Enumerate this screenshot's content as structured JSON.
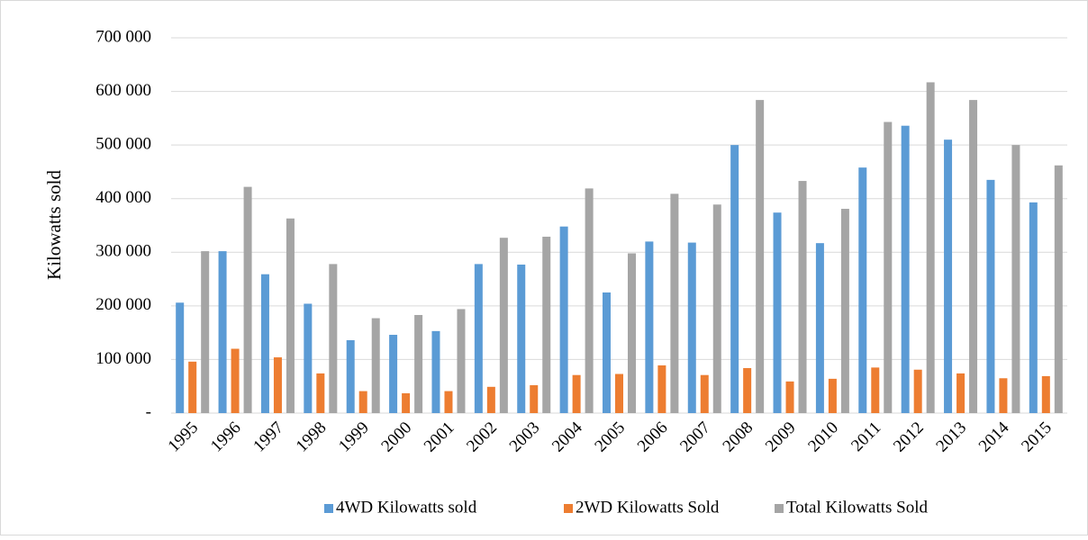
{
  "chart_data": {
    "type": "bar",
    "y_axis_label": "Kilowatts sold",
    "categories": [
      "1995",
      "1996",
      "1997",
      "1998",
      "1999",
      "2000",
      "2001",
      "2002",
      "2003",
      "2004",
      "2005",
      "2006",
      "2007",
      "2008",
      "2009",
      "2010",
      "2011",
      "2012",
      "2013",
      "2014",
      "2015"
    ],
    "series": [
      {
        "name": "4WD Kilowatts sold",
        "color": "#5b9bd5",
        "values": [
          206000,
          302000,
          259000,
          204000,
          136000,
          146000,
          153000,
          278000,
          277000,
          348000,
          225000,
          320000,
          318000,
          500000,
          374000,
          317000,
          458000,
          536000,
          510000,
          435000,
          393000
        ]
      },
      {
        "name": "2WD Kilowatts Sold",
        "color": "#ed7d31",
        "values": [
          96000,
          120000,
          104000,
          74000,
          41000,
          37000,
          41000,
          49000,
          52000,
          71000,
          73000,
          89000,
          71000,
          84000,
          59000,
          64000,
          85000,
          81000,
          74000,
          65000,
          69000
        ]
      },
      {
        "name": "Total Kilowatts Sold",
        "color": "#a5a5a5",
        "values": [
          302000,
          422000,
          363000,
          278000,
          177000,
          183000,
          194000,
          327000,
          329000,
          419000,
          298000,
          409000,
          389000,
          584000,
          433000,
          381000,
          543000,
          617000,
          584000,
          500000,
          462000
        ]
      }
    ],
    "ylim": [
      0,
      700000
    ],
    "yticks": [
      {
        "value": 0,
        "label": "-"
      },
      {
        "value": 100000,
        "label": "100 000"
      },
      {
        "value": 200000,
        "label": "200 000"
      },
      {
        "value": 300000,
        "label": "300 000"
      },
      {
        "value": 400000,
        "label": "400 000"
      },
      {
        "value": 500000,
        "label": "500 000"
      },
      {
        "value": 600000,
        "label": "600 000"
      },
      {
        "value": 700000,
        "label": "700 000"
      }
    ],
    "grid": true,
    "legend": "bottom"
  }
}
